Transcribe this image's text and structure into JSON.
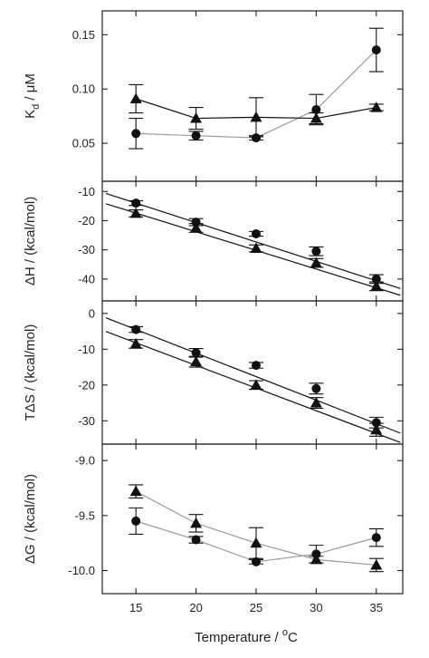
{
  "chart_data": [
    {
      "type": "scatter",
      "ylabel_main": "K",
      "ylabel_sub": "d",
      "ylabel_rest": " / μM",
      "ylim": [
        0.015,
        0.172
      ],
      "yticks": [
        0.05,
        0.1,
        0.15
      ],
      "ytick_labels": [
        "0.05",
        "0.10",
        "0.15"
      ],
      "x": [
        15,
        20,
        25,
        30,
        35
      ],
      "series": [
        {
          "marker": "circle",
          "color": "#9a9a9a",
          "y": [
            0.059,
            0.057,
            0.055,
            0.081,
            0.136
          ],
          "err": [
            0.014,
            0.004,
            0.002,
            0.014,
            0.02
          ]
        },
        {
          "marker": "triangle",
          "color": "#111111",
          "y": [
            0.091,
            0.073,
            0.074,
            0.073,
            0.083
          ],
          "err": [
            0.013,
            0.01,
            0.018,
            0.005,
            0.003
          ]
        }
      ],
      "line_style": "connect"
    },
    {
      "type": "scatter",
      "ylabel": "ΔH / (kcal/mol)",
      "ylim": [
        -47.5,
        -6.5
      ],
      "yticks": [
        -10,
        -20,
        -30,
        -40
      ],
      "ytick_labels": [
        "-10",
        "-20",
        "-30",
        "-40"
      ],
      "x": [
        15,
        20,
        25,
        30,
        35
      ],
      "series": [
        {
          "marker": "circle",
          "y": [
            -14.0,
            -20.5,
            -24.5,
            -30.5,
            -40.0
          ],
          "err": [
            0.8,
            1.2,
            0.8,
            1.5,
            1.5
          ],
          "fit": [
            -14.0,
            -40.6
          ]
        },
        {
          "marker": "triangle",
          "y": [
            -17.5,
            -22.5,
            -29.5,
            -34.5,
            -42.5
          ],
          "err": [
            1.2,
            1.5,
            1.2,
            1.5,
            1.5
          ],
          "fit": [
            -17.4,
            -43.0
          ]
        }
      ],
      "line_style": "fit"
    },
    {
      "type": "scatter",
      "ylabel": "TΔS / (kcal/mol)",
      "ylim": [
        -36.5,
        3.5
      ],
      "yticks": [
        0,
        -10,
        -20,
        -30
      ],
      "ytick_labels": [
        "0",
        "-10",
        "-20",
        "-30"
      ],
      "x": [
        15,
        20,
        25,
        30,
        35
      ],
      "series": [
        {
          "marker": "circle",
          "y": [
            -4.5,
            -11.0,
            -14.5,
            -21.0,
            -30.5
          ],
          "err": [
            0.8,
            1.2,
            0.8,
            1.5,
            1.5
          ],
          "fit": [
            -4.5,
            -30.8
          ]
        },
        {
          "marker": "triangle",
          "y": [
            -8.5,
            -13.5,
            -20.0,
            -25.0,
            -32.5
          ],
          "err": [
            1.2,
            1.5,
            1.2,
            1.5,
            1.8
          ],
          "fit": [
            -8.2,
            -33.5
          ]
        }
      ],
      "line_style": "fit"
    },
    {
      "type": "scatter",
      "ylabel": "ΔG / (kcal/mol)",
      "ylim": [
        -10.21,
        -8.85
      ],
      "yticks": [
        -9.0,
        -9.5,
        -10.0
      ],
      "ytick_labels": [
        "-9.0",
        "-9.5",
        "-10.0"
      ],
      "x": [
        15,
        20,
        25,
        30,
        35
      ],
      "series": [
        {
          "marker": "circle",
          "color": "#9a9a9a",
          "y": [
            -9.55,
            -9.72,
            -9.92,
            -9.85,
            -9.7
          ],
          "err": [
            0.12,
            0.03,
            0.02,
            0.08,
            0.08
          ]
        },
        {
          "marker": "triangle",
          "color": "#9a9a9a",
          "y": [
            -9.28,
            -9.57,
            -9.75,
            -9.9,
            -9.95
          ],
          "err": [
            0.06,
            0.08,
            0.14,
            0.03,
            0.06
          ]
        }
      ],
      "line_style": "connect"
    }
  ],
  "shared_x": {
    "xlim": [
      12.2,
      37.2
    ],
    "xticks": [
      15,
      20,
      25,
      30,
      35
    ],
    "xtick_labels": [
      "15",
      "20",
      "25",
      "30",
      "35"
    ],
    "xlabel_main": "Temperature / ",
    "xlabel_sup": "o",
    "xlabel_unit": "C"
  }
}
